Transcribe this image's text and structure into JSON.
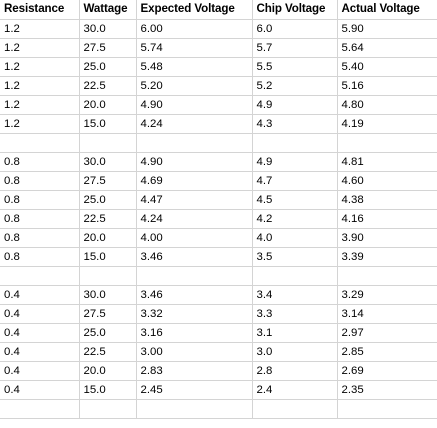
{
  "sheet": {
    "headers": [
      "Resistance",
      "Wattage",
      "Expected Voltage",
      "Chip Voltage",
      "Actual Voltage"
    ],
    "rows": [
      [
        "1.2",
        "30.0",
        "6.00",
        "6.0",
        "5.90"
      ],
      [
        "1.2",
        "27.5",
        "5.74",
        "5.7",
        "5.64"
      ],
      [
        "1.2",
        "25.0",
        "5.48",
        "5.5",
        "5.40"
      ],
      [
        "1.2",
        "22.5",
        "5.20",
        "5.2",
        "5.16"
      ],
      [
        "1.2",
        "20.0",
        "4.90",
        "4.9",
        "4.80"
      ],
      [
        "1.2",
        "15.0",
        "4.24",
        "4.3",
        "4.19"
      ],
      [
        "",
        "",
        "",
        "",
        ""
      ],
      [
        "0.8",
        "30.0",
        "4.90",
        "4.9",
        "4.81"
      ],
      [
        "0.8",
        "27.5",
        "4.69",
        "4.7",
        "4.60"
      ],
      [
        "0.8",
        "25.0",
        "4.47",
        "4.5",
        "4.38"
      ],
      [
        "0.8",
        "22.5",
        "4.24",
        "4.2",
        "4.16"
      ],
      [
        "0.8",
        "20.0",
        "4.00",
        "4.0",
        "3.90"
      ],
      [
        "0.8",
        "15.0",
        "3.46",
        "3.5",
        "3.39"
      ],
      [
        "",
        "",
        "",
        "",
        ""
      ],
      [
        "0.4",
        "30.0",
        "3.46",
        "3.4",
        "3.29"
      ],
      [
        "0.4",
        "27.5",
        "3.32",
        "3.3",
        "3.14"
      ],
      [
        "0.4",
        "25.0",
        "3.16",
        "3.1",
        "2.97"
      ],
      [
        "0.4",
        "22.5",
        "3.00",
        "3.0",
        "2.85"
      ],
      [
        "0.4",
        "20.0",
        "2.83",
        "2.8",
        "2.69"
      ],
      [
        "0.4",
        "15.0",
        "2.45",
        "2.4",
        "2.35"
      ],
      [
        "",
        "",
        "",
        "",
        ""
      ]
    ]
  }
}
